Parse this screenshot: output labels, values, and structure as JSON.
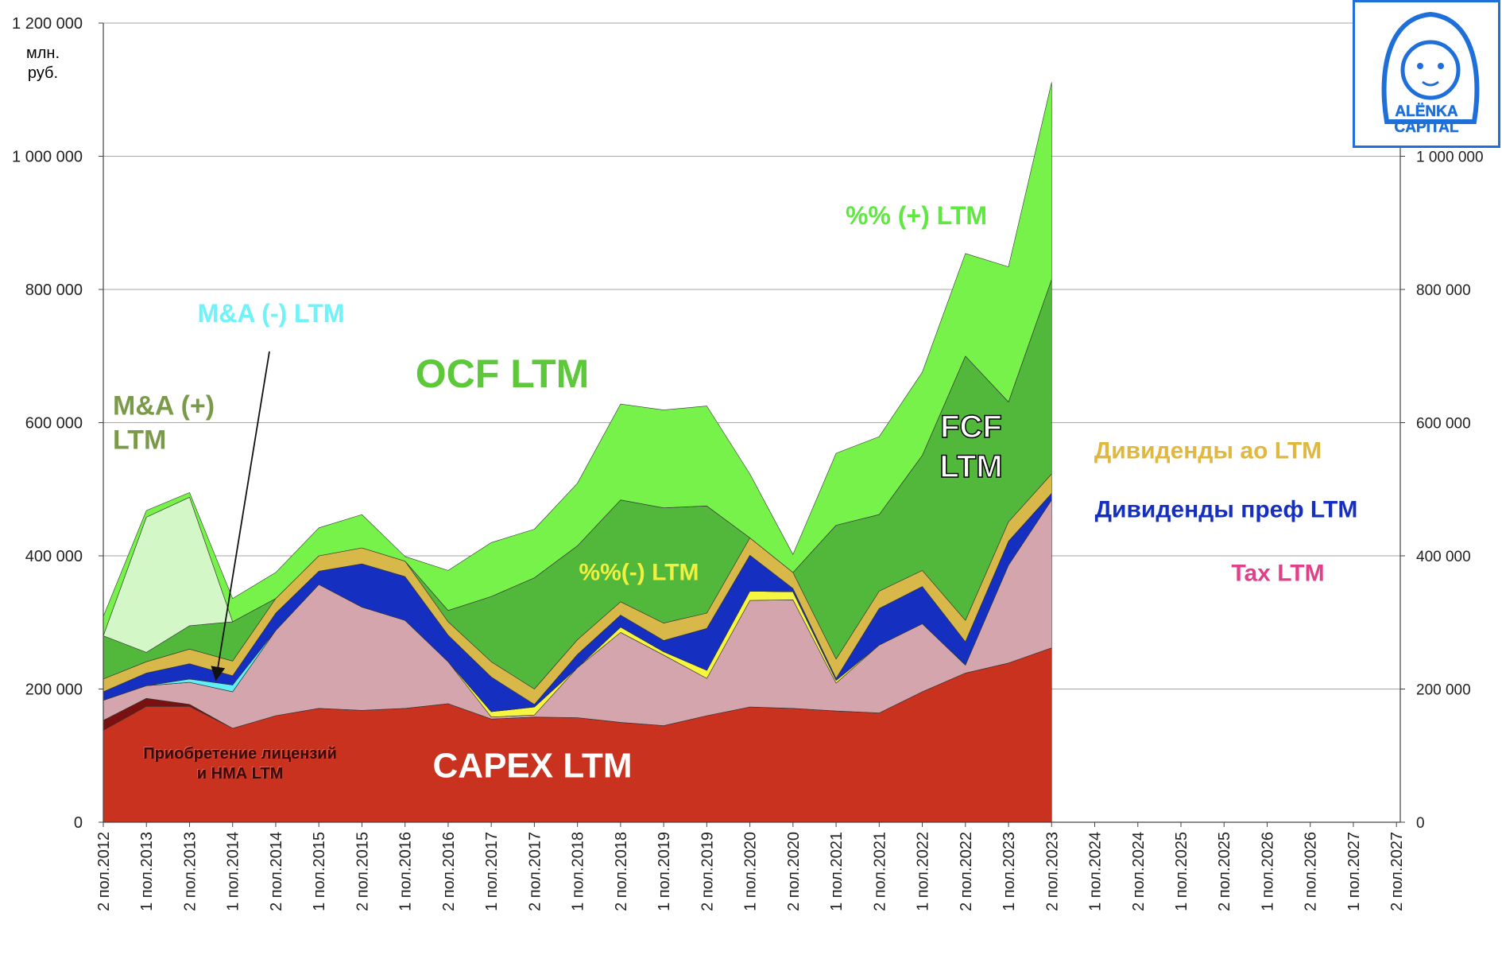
{
  "chart_data": {
    "type": "stacked_area",
    "unit_label": "млн. руб.",
    "annotation": "OCF LTM",
    "categories": [
      "2 пол.2012",
      "1 пол.2013",
      "2 пол.2013",
      "1 пол.2014",
      "2 пол.2014",
      "1 пол.2015",
      "2 пол.2015",
      "1 пол.2016",
      "2 пол.2016",
      "1 пол.2017",
      "2 пол.2017",
      "1 пол.2018",
      "2 пол.2018",
      "1 пол.2019",
      "2 пол.2019",
      "1 пол.2020",
      "2 пол.2020",
      "1 пол.2021",
      "2 пол.2021",
      "1 пол.2022",
      "2 пол.2022",
      "1 пол.2023",
      "2 пол.2023",
      "1 пол.2024",
      "2 пол.2024",
      "1 пол.2025",
      "2 пол.2025",
      "1 пол.2026",
      "2 пол.2026",
      "1 пол.2027",
      "2 пол.2027"
    ],
    "ylim": [
      0,
      1200000
    ],
    "yticks": [
      0,
      {
        "value": 200000,
        "label": "200 000"
      },
      {
        "value": 400000,
        "label": "400 000"
      },
      {
        "value": 600000,
        "label": "600 000"
      },
      {
        "value": 800000,
        "label": "800 000"
      },
      {
        "value": 1000000,
        "label": "1 000 000"
      },
      {
        "value": 1200000,
        "label": "1 200 000"
      }
    ],
    "y2lim": [
      0,
      1200000
    ],
    "y2ticks": [
      0,
      {
        "value": 200000,
        "label": "200 000"
      },
      {
        "value": 400000,
        "label": "400 000"
      },
      {
        "value": 600000,
        "label": "600 000"
      },
      {
        "value": 800000,
        "label": "800 000"
      },
      {
        "value": 1000000,
        "label": "1 000 000"
      }
    ],
    "grid": true,
    "series": [
      {
        "name": "CAPEX LTM",
        "color": "#c8321e",
        "label_color": "#ffffff",
        "values": [
          138000,
          174000,
          174000,
          141000,
          160000,
          171000,
          168000,
          171000,
          178000,
          155000,
          158000,
          157000,
          150000,
          145000,
          160000,
          173000,
          171000,
          167000,
          164000,
          196000,
          224000,
          239000,
          262000,
          null,
          null,
          null,
          null,
          null,
          null,
          null,
          null
        ]
      },
      {
        "name": "Приобретение лицензий и НМА LTM",
        "color": "#7a1010",
        "label_color": "#3a0a0a",
        "values": [
          15000,
          12000,
          3000,
          0,
          0,
          0,
          0,
          0,
          0,
          0,
          0,
          0,
          0,
          0,
          0,
          0,
          0,
          0,
          0,
          0,
          0,
          0,
          0,
          null,
          null,
          null,
          null,
          null,
          null,
          null,
          null
        ]
      },
      {
        "name": "Tax LTM",
        "color": "#d4a5ad",
        "label_color": "#e0408a",
        "values": [
          30000,
          19000,
          33000,
          55000,
          128000,
          186000,
          155000,
          132000,
          63000,
          3000,
          3000,
          75000,
          135000,
          106000,
          56000,
          160000,
          163000,
          42000,
          102000,
          102000,
          12000,
          147000,
          222000,
          null,
          null,
          null,
          null,
          null,
          null,
          null,
          null
        ]
      },
      {
        "name": "%%(-) LTM",
        "color": "#f5f542",
        "label_color": "#f0f040",
        "values": [
          0,
          0,
          0,
          0,
          0,
          0,
          0,
          0,
          0,
          8000,
          12000,
          0,
          8000,
          5000,
          12000,
          14000,
          12000,
          4000,
          0,
          0,
          0,
          0,
          0,
          null,
          null,
          null,
          null,
          null,
          null,
          null,
          null
        ]
      },
      {
        "name": "M&A (-) LTM",
        "color": "#5ff0f5",
        "label_color": "#6ff3f8",
        "values": [
          0,
          0,
          5000,
          10000,
          0,
          0,
          0,
          0,
          0,
          0,
          0,
          0,
          0,
          0,
          0,
          0,
          0,
          0,
          0,
          0,
          0,
          0,
          0,
          null,
          null,
          null,
          null,
          null,
          null,
          null,
          null
        ]
      },
      {
        "name": "Дивиденды преф LTM",
        "color": "#1530c0",
        "label_color": "#1530c0",
        "values": [
          13000,
          19000,
          23000,
          14000,
          26000,
          20000,
          65000,
          66000,
          40000,
          52000,
          4000,
          20000,
          18000,
          17000,
          63000,
          54000,
          5000,
          3000,
          55000,
          56000,
          35000,
          36000,
          10000,
          null,
          null,
          null,
          null,
          null,
          null,
          null,
          null
        ]
      },
      {
        "name": "Дивиденды ао LTM",
        "color": "#d9b84a",
        "label_color": "#e0b840",
        "values": [
          19000,
          17000,
          22000,
          22000,
          22000,
          23000,
          24000,
          23000,
          20000,
          23000,
          23000,
          22000,
          20000,
          26000,
          23000,
          26000,
          24000,
          29000,
          26000,
          24000,
          32000,
          29000,
          29000,
          null,
          null,
          null,
          null,
          null,
          null,
          null,
          null
        ]
      },
      {
        "name": "FCF LTM",
        "color": "#52b83c",
        "label_color": "#ffffff",
        "values": [
          65000,
          14000,
          35000,
          59000,
          0,
          0,
          0,
          0,
          17000,
          98000,
          167000,
          141000,
          153000,
          173000,
          161000,
          0,
          0,
          201000,
          115000,
          173000,
          397000,
          180000,
          292000,
          null,
          null,
          null,
          null,
          null,
          null,
          null,
          null
        ]
      },
      {
        "name": "M&A (+) LTM",
        "color": "#d4f7c8",
        "label_color": "#7a9a4a",
        "values": [
          0,
          203000,
          193000,
          0,
          0,
          0,
          0,
          0,
          0,
          0,
          0,
          0,
          0,
          0,
          0,
          0,
          0,
          0,
          0,
          0,
          0,
          0,
          0,
          null,
          null,
          null,
          null,
          null,
          null,
          null,
          null
        ]
      },
      {
        "name": "%% (+) LTM",
        "color": "#76f24a",
        "label_color": "#5fe840",
        "values": [
          29000,
          10000,
          7000,
          35000,
          39000,
          42000,
          50000,
          7000,
          60000,
          81000,
          73000,
          94000,
          144000,
          147000,
          150000,
          96000,
          27000,
          108000,
          117000,
          125000,
          154000,
          203000,
          296000,
          null,
          null,
          null,
          null,
          null,
          null,
          null,
          null
        ]
      }
    ]
  },
  "logo": {
    "lines": [
      "ALЁNKA",
      "CAPITAL"
    ]
  }
}
